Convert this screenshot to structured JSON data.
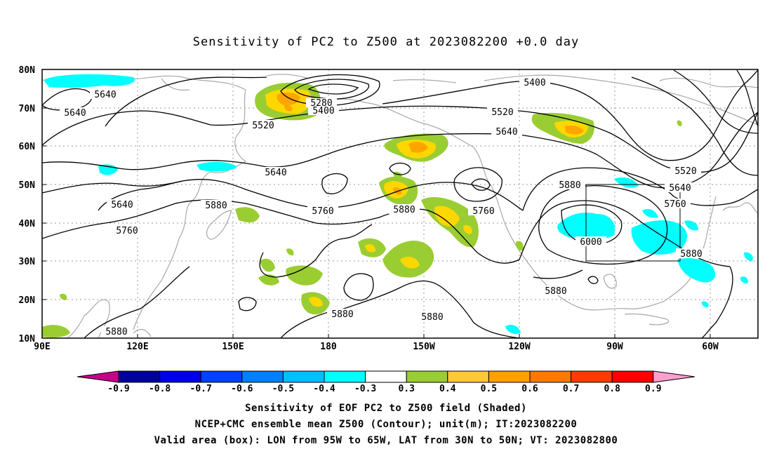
{
  "title": "Sensitivity of PC2 to Z500 at 2023082200 +0.0 day",
  "lat_labels": [
    "80N",
    "70N",
    "60N",
    "50N",
    "40N",
    "30N",
    "20N",
    "10N"
  ],
  "lon_labels": [
    "90E",
    "120E",
    "150E",
    "180",
    "150W",
    "120W",
    "90W",
    "60W"
  ],
  "contours": {
    "labels": [
      "5640",
      "5640",
      "5520",
      "5280",
      "5400",
      "5640",
      "5640",
      "5760",
      "5880",
      "5760",
      "5880",
      "5520",
      "5640",
      "5400",
      "5880",
      "5760",
      "6000",
      "5520",
      "5640",
      "5760",
      "5880",
      "5880",
      "5880",
      "5880",
      "5880"
    ],
    "levels": [
      5280,
      5400,
      5520,
      5640,
      5760,
      5880,
      6000
    ]
  },
  "colorbar": {
    "labels": [
      "-0.9",
      "-0.8",
      "-0.7",
      "-0.6",
      "-0.5",
      "-0.4",
      "-0.3",
      "0.3",
      "0.4",
      "0.5",
      "0.6",
      "0.7",
      "0.8",
      "0.9"
    ],
    "colors": [
      "#c8008a",
      "#00009c",
      "#0000e6",
      "#0040ff",
      "#0080ff",
      "#00bfff",
      "#00ffff",
      "#ffffff",
      "#9acd32",
      "#ffd700",
      "#ffa500",
      "#ff7f00",
      "#ff3300",
      "#ff0000",
      "#ff9fd0"
    ]
  },
  "valid_box": {
    "lon": [
      -95,
      -65
    ],
    "lat": [
      30,
      50
    ]
  },
  "caption": {
    "line1": "Sensitivity of EOF PC2 to Z500 field (Shaded)",
    "line2": "NCEP+CMC ensemble mean Z500 (Contour); unit(m); IT:2023082200",
    "line3": "Valid area (box): LON from 95W to 65W, LAT from 30N to 50N; VT: 2023082800"
  }
}
